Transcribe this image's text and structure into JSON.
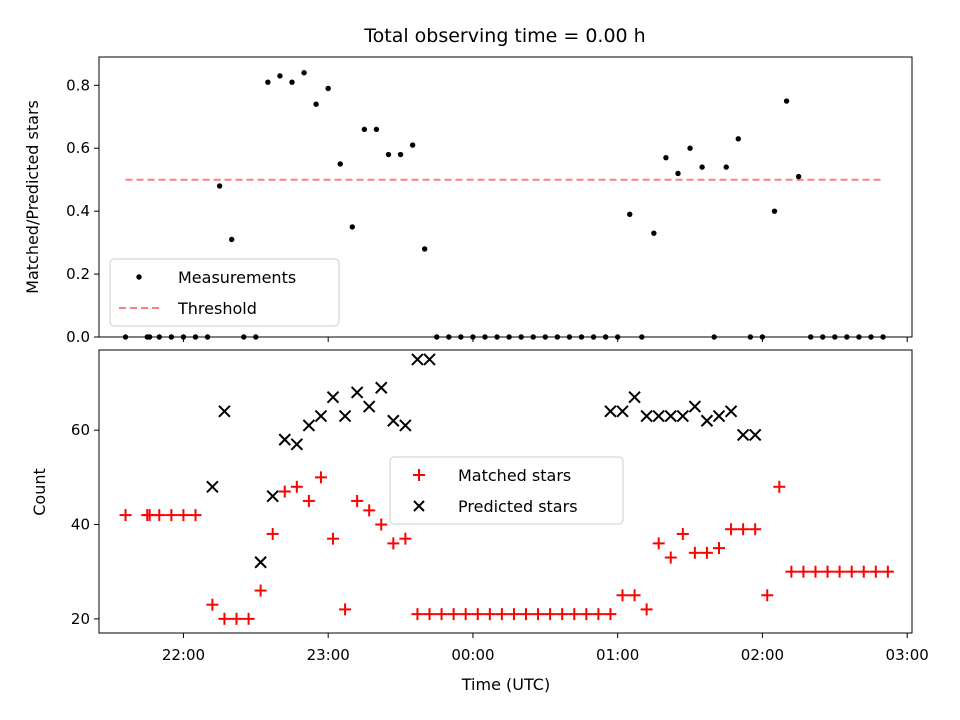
{
  "chart_data": [
    {
      "type": "scatter",
      "title": "Total observing time = 0.00 h",
      "xlabel": "",
      "ylabel": "Matched/Predicted stars",
      "xlim": [
        "21:25",
        "03:02"
      ],
      "ylim": [
        0,
        0.89
      ],
      "yticks": [
        0.0,
        0.2,
        0.4,
        0.6,
        0.8
      ],
      "ytick_labels": [
        "0.0",
        "0.2",
        "0.4",
        "0.6",
        "0.8"
      ],
      "grid": false,
      "legend_position": "lower-left",
      "series": [
        {
          "name": "Measurements",
          "color": "#000000",
          "marker": "dot",
          "x": [
            "21:36",
            "21:45",
            "21:46",
            "21:50",
            "21:55",
            "22:00",
            "22:05",
            "22:10",
            "22:15",
            "22:20",
            "22:25",
            "22:30",
            "22:35",
            "22:40",
            "22:45",
            "22:50",
            "22:55",
            "23:00",
            "23:05",
            "23:10",
            "23:15",
            "23:20",
            "23:25",
            "23:30",
            "23:35",
            "23:40",
            "23:45",
            "23:50",
            "23:55",
            "00:00",
            "00:05",
            "00:10",
            "00:15",
            "00:20",
            "00:25",
            "00:30",
            "00:35",
            "00:40",
            "00:45",
            "00:50",
            "00:55",
            "01:00",
            "01:05",
            "01:10",
            "01:15",
            "01:20",
            "01:25",
            "01:30",
            "01:35",
            "01:40",
            "01:45",
            "01:50",
            "01:55",
            "02:00",
            "02:05",
            "02:10",
            "02:15",
            "02:20",
            "02:25",
            "02:30",
            "02:35",
            "02:40",
            "02:45",
            "02:50"
          ],
          "y": [
            0.0,
            0.0,
            0.0,
            0.0,
            0.0,
            0.0,
            0.0,
            0.0,
            0.48,
            0.31,
            0.0,
            0.0,
            0.81,
            0.83,
            0.81,
            0.84,
            0.74,
            0.79,
            0.55,
            0.35,
            0.66,
            0.66,
            0.58,
            0.58,
            0.61,
            0.28,
            0.0,
            0.0,
            0.0,
            0.0,
            0.0,
            0.0,
            0.0,
            0.0,
            0.0,
            0.0,
            0.0,
            0.0,
            0.0,
            0.0,
            0.0,
            0.0,
            0.39,
            0.0,
            0.33,
            0.57,
            0.52,
            0.6,
            0.54,
            0.0,
            0.54,
            0.63,
            0.0,
            0.0,
            0.4,
            0.75,
            0.51,
            0.0,
            0.0,
            0.0,
            0.0,
            0.0,
            0.0,
            0.0
          ]
        },
        {
          "name": "Threshold",
          "color": "#ff7f7f",
          "style": "dashed",
          "x": [
            "21:36",
            "02:50"
          ],
          "y": [
            0.5,
            0.5
          ]
        }
      ]
    },
    {
      "type": "scatter",
      "title": "",
      "xlabel": "Time (UTC)",
      "ylabel": "Count",
      "xlim": [
        "21:25",
        "03:02"
      ],
      "ylim": [
        17,
        77
      ],
      "xticks": [
        "22:00",
        "23:00",
        "00:00",
        "01:00",
        "02:00",
        "03:00"
      ],
      "yticks": [
        20,
        40,
        60
      ],
      "ytick_labels": [
        "20",
        "40",
        "60"
      ],
      "grid": false,
      "legend_position": "center",
      "series": [
        {
          "name": "Matched stars",
          "color": "#ff0000",
          "marker": "plus",
          "x": [
            "21:36",
            "21:45",
            "21:46",
            "21:50",
            "21:55",
            "22:00",
            "22:05",
            "22:12",
            "22:17",
            "22:22",
            "22:27",
            "22:32",
            "22:37",
            "22:42",
            "22:47",
            "22:52",
            "22:57",
            "23:02",
            "23:07",
            "23:12",
            "23:17",
            "23:22",
            "23:27",
            "23:32",
            "23:37",
            "23:42",
            "23:47",
            "23:52",
            "23:57",
            "00:02",
            "00:07",
            "00:12",
            "00:17",
            "00:22",
            "00:27",
            "00:32",
            "00:37",
            "00:42",
            "00:47",
            "00:52",
            "00:57",
            "01:02",
            "01:07",
            "01:12",
            "01:17",
            "01:22",
            "01:27",
            "01:32",
            "01:37",
            "01:42",
            "01:47",
            "01:52",
            "01:57",
            "02:02",
            "02:07",
            "02:12",
            "02:17",
            "02:22",
            "02:27",
            "02:32",
            "02:37",
            "02:42",
            "02:47",
            "02:52"
          ],
          "y": [
            42,
            42,
            42,
            42,
            42,
            42,
            42,
            23,
            20,
            20,
            20,
            26,
            38,
            47,
            48,
            45,
            50,
            37,
            22,
            45,
            43,
            40,
            36,
            37,
            21,
            21,
            21,
            21,
            21,
            21,
            21,
            21,
            21,
            21,
            21,
            21,
            21,
            21,
            21,
            21,
            21,
            25,
            25,
            22,
            36,
            33,
            38,
            34,
            34,
            35,
            39,
            39,
            39,
            25,
            48,
            30,
            30,
            30,
            30,
            30,
            30,
            30,
            30,
            30
          ]
        },
        {
          "name": "Predicted stars",
          "color": "#000000",
          "marker": "x",
          "x": [
            "22:12",
            "22:17",
            "22:32",
            "22:37",
            "22:42",
            "22:47",
            "22:52",
            "22:57",
            "23:02",
            "23:07",
            "23:12",
            "23:17",
            "23:22",
            "23:27",
            "23:32",
            "23:37",
            "23:42",
            "00:57",
            "01:02",
            "01:07",
            "01:12",
            "01:17",
            "01:22",
            "01:27",
            "01:32",
            "01:37",
            "01:42",
            "01:47",
            "01:52",
            "01:57"
          ],
          "y": [
            48,
            64,
            32,
            46,
            58,
            57,
            61,
            63,
            67,
            63,
            68,
            65,
            69,
            62,
            61,
            75,
            75,
            64,
            64,
            67,
            63,
            63,
            63,
            63,
            65,
            62,
            63,
            64,
            59,
            59
          ]
        }
      ]
    }
  ]
}
